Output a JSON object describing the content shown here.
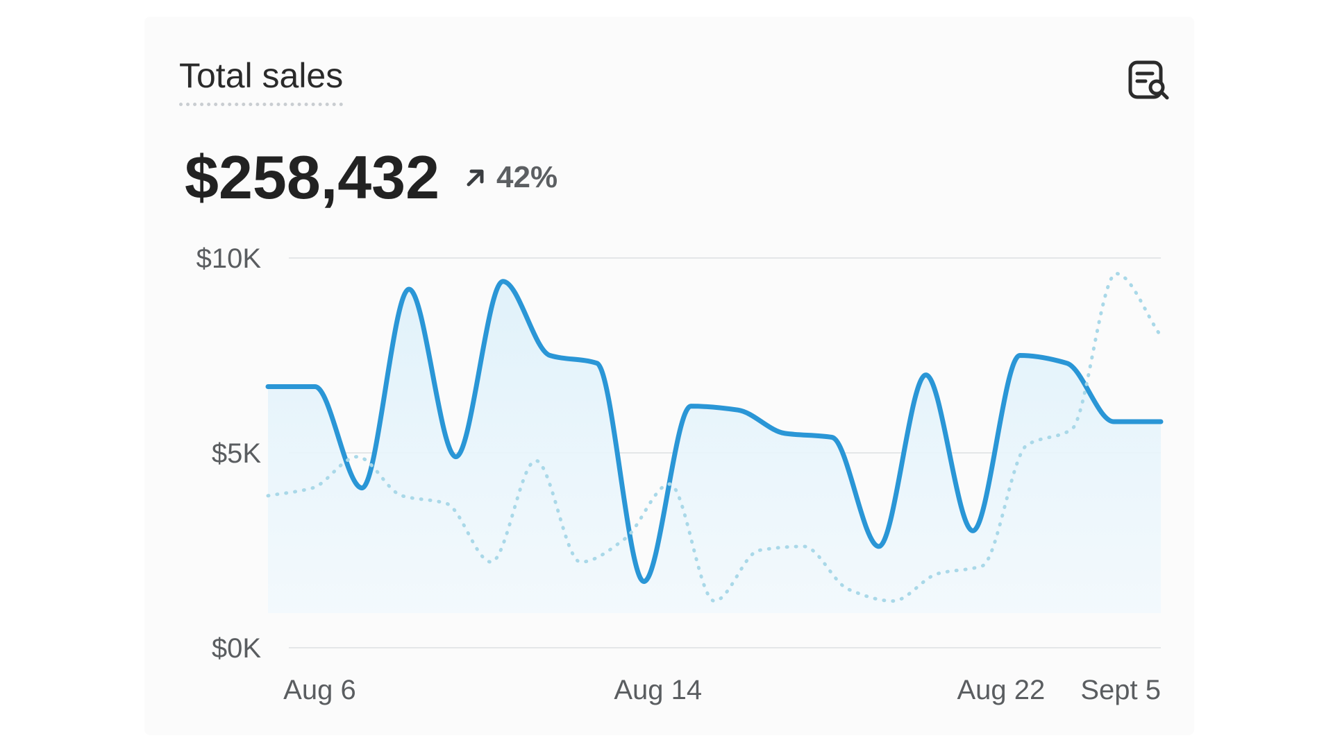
{
  "header": {
    "title": "Total sales",
    "insights_icon": "document-search-icon"
  },
  "metric": {
    "value": "$258,432",
    "delta": "42%",
    "delta_icon": "arrow-up-right-icon"
  },
  "colors": {
    "primary": "#2a96d6",
    "comparison": "#a9d8e8",
    "fill": "#e8f6fc",
    "grid": "#e4e6e8"
  },
  "chart_data": {
    "type": "line",
    "ylim": [
      0,
      10000
    ],
    "y_ticks": [
      {
        "value": 10000,
        "label": "$10K"
      },
      {
        "value": 5000,
        "label": "$5K"
      },
      {
        "value": 0,
        "label": "$0K"
      }
    ],
    "x_tick_labels": [
      {
        "label": "Aug 6",
        "at": 1.1
      },
      {
        "label": "Aug 14",
        "at": 8.3
      },
      {
        "label": "Aug 22",
        "at": 15.6
      },
      {
        "label": "Sept 5",
        "at": 22.1
      }
    ],
    "grid": true,
    "series": [
      {
        "style": "solid",
        "values": [
          6700,
          6700,
          4100,
          9200,
          4900,
          9400,
          7500,
          7300,
          1700,
          6200,
          6100,
          5500,
          5400,
          2600,
          7000,
          3000,
          7500,
          7300,
          5800,
          5800
        ]
      },
      {
        "style": "dotted",
        "values": [
          3900,
          4100,
          4900,
          3900,
          3700,
          2200,
          4800,
          2200,
          2800,
          4200,
          1200,
          2500,
          2600,
          1500,
          1200,
          1900,
          2100,
          5200,
          5600,
          9600,
          8000
        ]
      }
    ]
  }
}
